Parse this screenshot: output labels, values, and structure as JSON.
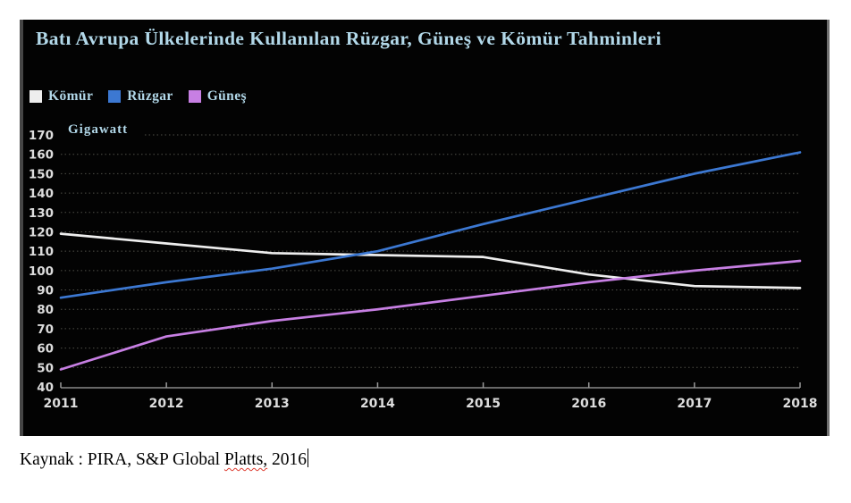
{
  "chart": {
    "unit_label": "Gigawatt",
    "background": "#030303",
    "title_color": "#b2d8e9",
    "grid_color": "#4f4f48",
    "axis_color": "#8a8a8a"
  },
  "chart_data": {
    "type": "line",
    "title": "Batı Avrupa Ülkelerinde Kullanılan Rüzgar, Güneş ve Kömür Tahminleri",
    "ylabel": "Gigawatt",
    "x": [
      2011,
      2012,
      2013,
      2014,
      2015,
      2016,
      2017,
      2018
    ],
    "series": [
      {
        "name": "Kömür",
        "color": "#eeeeee",
        "values": [
          119,
          114,
          109,
          108,
          107,
          98,
          92,
          91
        ]
      },
      {
        "name": "Rüzgar",
        "color": "#3c78d2",
        "values": [
          86,
          94,
          101,
          110,
          124,
          137,
          150,
          161
        ]
      },
      {
        "name": "Güneş",
        "color": "#c77fe3",
        "values": [
          49,
          66,
          74,
          80,
          87,
          94,
          100,
          105
        ]
      }
    ],
    "ylim": [
      40,
      170
    ],
    "ytick_interval": 10,
    "grid": "dotted horizontal gridlines",
    "legend_position": "top-left",
    "legend_order": [
      "Kömür",
      "Rüzgar",
      "Güneş"
    ]
  },
  "caption": {
    "prefix": "Kaynak : PIRA, S&P Global ",
    "misspelled_word": "Platts,",
    "suffix": " 2016"
  }
}
